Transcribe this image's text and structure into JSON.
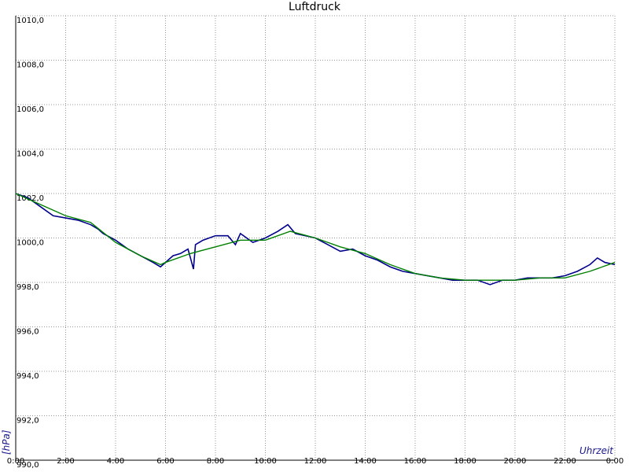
{
  "chart_data": {
    "type": "line",
    "title": "Luftdruck",
    "y_label": "[hPa]",
    "x_label": "Uhrzeit",
    "xlim": [
      0,
      24
    ],
    "ylim": [
      990,
      1010
    ],
    "grid": true,
    "xticks": [
      {
        "value": 0,
        "label": "0:00"
      },
      {
        "value": 2,
        "label": "2:00"
      },
      {
        "value": 4,
        "label": "4:00"
      },
      {
        "value": 6,
        "label": "6:00"
      },
      {
        "value": 8,
        "label": "8:00"
      },
      {
        "value": 10,
        "label": "10:00"
      },
      {
        "value": 12,
        "label": "12:00"
      },
      {
        "value": 14,
        "label": "14:00"
      },
      {
        "value": 16,
        "label": "16:00"
      },
      {
        "value": 18,
        "label": "18:00"
      },
      {
        "value": 20,
        "label": "20:00"
      },
      {
        "value": 22,
        "label": "22:00"
      },
      {
        "value": 24,
        "label": "0:00"
      }
    ],
    "yticks": [
      {
        "value": 990,
        "label": "990,0"
      },
      {
        "value": 992,
        "label": "992,0"
      },
      {
        "value": 994,
        "label": "994,0"
      },
      {
        "value": 996,
        "label": "996,0"
      },
      {
        "value": 998,
        "label": "998,0"
      },
      {
        "value": 1000,
        "label": "1000,0"
      },
      {
        "value": 1002,
        "label": "1002,0"
      },
      {
        "value": 1004,
        "label": "1004,0"
      },
      {
        "value": 1006,
        "label": "1006,0"
      },
      {
        "value": 1008,
        "label": "1008,0"
      },
      {
        "value": 1010,
        "label": "1010,0"
      }
    ],
    "series": [
      {
        "color": "#00008b",
        "x": [
          0,
          0.5,
          1,
          1.5,
          2,
          2.5,
          3,
          3.3,
          3.5,
          4,
          4.5,
          5,
          5.5,
          5.8,
          6,
          6.3,
          6.6,
          6.9,
          7,
          7.12,
          7.2,
          7.5,
          8,
          8.5,
          8.8,
          9,
          9.5,
          10,
          10.5,
          10.9,
          11.2,
          12,
          12.5,
          13,
          13.5,
          14,
          14.5,
          15,
          15.5,
          16,
          16.5,
          17,
          17.5,
          18,
          18.5,
          19,
          19.5,
          20,
          20.5,
          21,
          21.5,
          22,
          22.5,
          23,
          23.3,
          23.6,
          24
        ],
        "values": [
          1002.0,
          1001.8,
          1001.4,
          1001.0,
          1000.9,
          1000.8,
          1000.6,
          1000.4,
          1000.2,
          999.9,
          999.5,
          999.2,
          998.9,
          998.7,
          998.9,
          999.2,
          999.3,
          999.5,
          999.1,
          998.6,
          999.7,
          999.9,
          1000.1,
          1000.1,
          999.7,
          1000.2,
          999.8,
          1000.0,
          1000.3,
          1000.6,
          1000.2,
          1000.0,
          999.7,
          999.4,
          999.5,
          999.2,
          999.0,
          998.7,
          998.5,
          998.4,
          998.3,
          998.2,
          998.1,
          998.1,
          998.1,
          997.9,
          998.1,
          998.1,
          998.2,
          998.2,
          998.2,
          998.3,
          998.5,
          998.8,
          999.1,
          998.9,
          998.8
        ]
      },
      {
        "color": "#008000",
        "x": [
          0,
          1,
          2,
          3,
          4,
          5,
          5.8,
          6,
          7,
          8,
          9,
          10,
          11,
          12,
          13,
          14,
          15,
          16,
          17,
          18,
          19,
          20,
          21,
          22,
          23,
          24
        ],
        "values": [
          1002.0,
          1001.5,
          1001.0,
          1000.7,
          999.8,
          999.2,
          998.8,
          998.9,
          999.3,
          999.6,
          999.9,
          999.9,
          1000.3,
          1000.0,
          999.6,
          999.3,
          998.8,
          998.4,
          998.2,
          998.1,
          998.1,
          998.1,
          998.2,
          998.2,
          998.5,
          998.9
        ]
      }
    ]
  }
}
